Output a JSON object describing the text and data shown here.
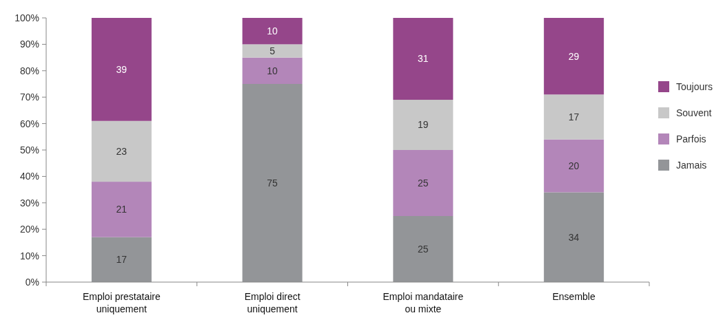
{
  "chart_data": {
    "type": "bar",
    "stacked": true,
    "data_labels": true,
    "legend": "right",
    "grid": false,
    "categories": [
      "Emploi prestataire uniquement",
      "Emploi direct uniquement",
      "Emploi mandataire ou mixte",
      "Ensemble"
    ],
    "series": [
      {
        "name": "Jamais",
        "color": "#939598",
        "values": [
          17,
          75,
          25,
          34
        ]
      },
      {
        "name": "Parfois",
        "color": "#b386b9",
        "values": [
          21,
          10,
          25,
          20
        ]
      },
      {
        "name": "Souvent",
        "color": "#c8c8c8",
        "values": [
          23,
          5,
          19,
          17
        ]
      },
      {
        "name": "Toujours",
        "color": "#95468a",
        "values": [
          39,
          10,
          31,
          29
        ]
      }
    ],
    "ylim": [
      0,
      100
    ],
    "yticks": [
      {
        "value": 0,
        "label": "0%"
      },
      {
        "value": 10,
        "label": "10%"
      },
      {
        "value": 20,
        "label": "20%"
      },
      {
        "value": 30,
        "label": "30%"
      },
      {
        "value": 40,
        "label": "40%"
      },
      {
        "value": 50,
        "label": "50%"
      },
      {
        "value": 60,
        "label": "60%"
      },
      {
        "value": 70,
        "label": "70%"
      },
      {
        "value": 80,
        "label": "80%"
      },
      {
        "value": 90,
        "label": "90%"
      },
      {
        "value": 100,
        "label": "100%"
      }
    ]
  }
}
